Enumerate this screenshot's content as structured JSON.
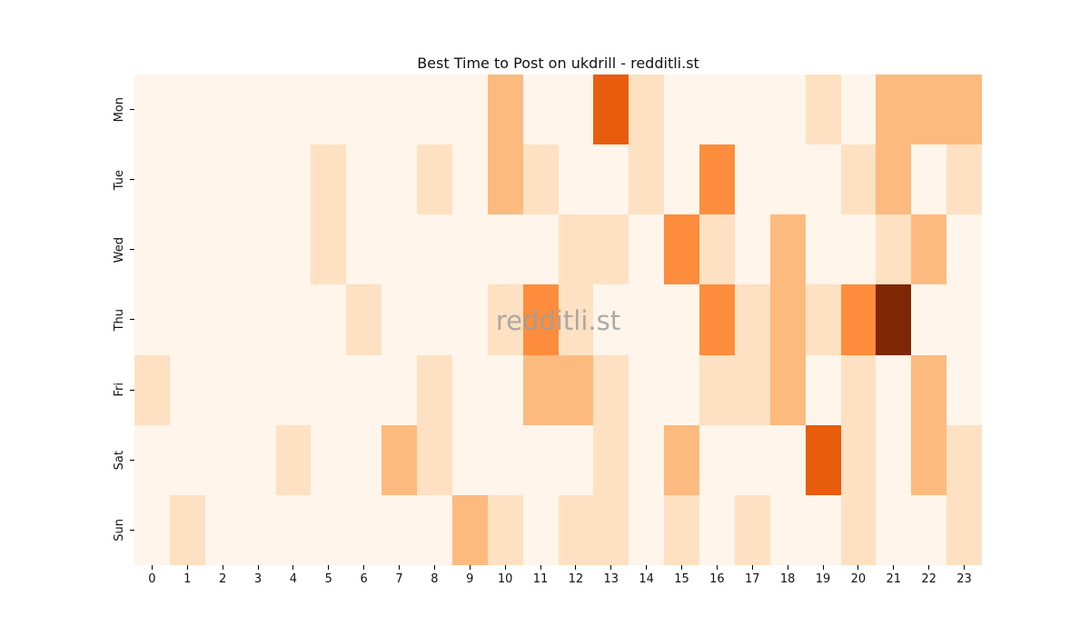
{
  "title": "Best Time to Post on ukdrill - redditli.st",
  "watermark": "redditli.st",
  "chart_data": {
    "type": "heatmap",
    "title": "Best Time to Post on ukdrill - redditli.st",
    "xlabel": "",
    "ylabel": "",
    "x_ticks": [
      "0",
      "1",
      "2",
      "3",
      "4",
      "5",
      "6",
      "7",
      "8",
      "9",
      "10",
      "11",
      "12",
      "13",
      "14",
      "15",
      "16",
      "17",
      "18",
      "19",
      "20",
      "21",
      "22",
      "23"
    ],
    "y_ticks": [
      "Mon",
      "Tue",
      "Wed",
      "Thu",
      "Fri",
      "Sat",
      "Sun"
    ],
    "colormap": "Oranges",
    "value_range": [
      0,
      6
    ],
    "legend": "none",
    "grid": "off",
    "palette": {
      "0": "#FFF5EB",
      "1": "#FDE1C2",
      "2": "#FCBA7F",
      "3": "#FD8D3C",
      "4": "#E85C0E",
      "5": "#B73C02",
      "6": "#7F2704"
    },
    "series": [
      {
        "name": "Mon",
        "values": [
          0,
          0,
          0,
          0,
          0,
          0,
          0,
          0,
          0,
          0,
          2,
          0,
          0,
          4,
          1,
          0,
          0,
          0,
          0,
          1,
          0,
          2,
          2,
          2
        ]
      },
      {
        "name": "Tue",
        "values": [
          0,
          0,
          0,
          0,
          0,
          1,
          0,
          0,
          1,
          0,
          2,
          1,
          0,
          0,
          1,
          0,
          3,
          0,
          0,
          0,
          1,
          2,
          0,
          1
        ]
      },
      {
        "name": "Wed",
        "values": [
          0,
          0,
          0,
          0,
          0,
          1,
          0,
          0,
          0,
          0,
          0,
          0,
          1,
          1,
          0,
          3,
          1,
          0,
          2,
          0,
          0,
          1,
          2,
          0
        ]
      },
      {
        "name": "Thu",
        "values": [
          0,
          0,
          0,
          0,
          0,
          0,
          1,
          0,
          0,
          0,
          1,
          3,
          1,
          0,
          0,
          0,
          3,
          1,
          2,
          1,
          3,
          6,
          0,
          0
        ]
      },
      {
        "name": "Fri",
        "values": [
          1,
          0,
          0,
          0,
          0,
          0,
          0,
          0,
          1,
          0,
          0,
          2,
          2,
          1,
          0,
          0,
          1,
          1,
          2,
          0,
          1,
          0,
          2,
          0
        ]
      },
      {
        "name": "Sat",
        "values": [
          0,
          0,
          0,
          0,
          1,
          0,
          0,
          2,
          1,
          0,
          0,
          0,
          0,
          1,
          0,
          2,
          0,
          0,
          0,
          4,
          1,
          0,
          2,
          1
        ]
      },
      {
        "name": "Sun",
        "values": [
          0,
          1,
          0,
          0,
          0,
          0,
          0,
          0,
          0,
          2,
          1,
          0,
          1,
          1,
          0,
          1,
          0,
          1,
          0,
          0,
          1,
          0,
          0,
          1
        ]
      }
    ]
  }
}
